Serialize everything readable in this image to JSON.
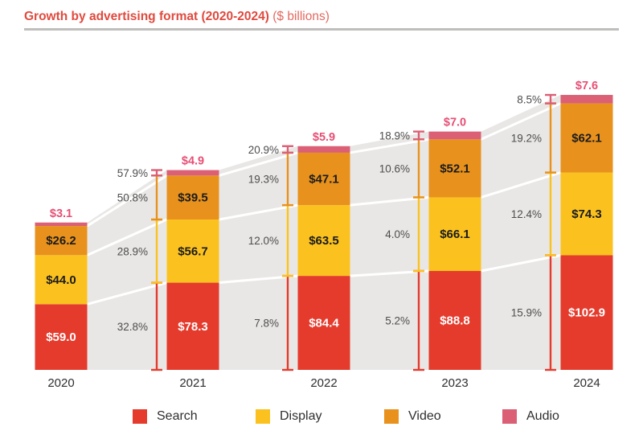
{
  "title": {
    "main": "Growth by advertising format (2020-2024)",
    "suffix": "($ billions)"
  },
  "chart_data": {
    "type": "bar",
    "stacked": true,
    "title": "Growth by advertising format (2020-2024)",
    "unit": "$ billions",
    "legend_position": "bottom",
    "categories": [
      "2020",
      "2021",
      "2022",
      "2023",
      "2024"
    ],
    "series": [
      {
        "name": "Search",
        "color": "#e53b2d",
        "label_color": "#ffffff",
        "values": [
          59.0,
          78.3,
          84.4,
          88.8,
          102.9
        ],
        "value_labels": [
          "$59.0",
          "$78.3",
          "$84.4",
          "$88.8",
          "$102.9"
        ],
        "growth_pct": [
          32.8,
          7.8,
          5.2,
          15.9
        ],
        "growth_labels": [
          "32.8%",
          "7.8%",
          "5.2%",
          "15.9%"
        ]
      },
      {
        "name": "Display",
        "color": "#fbc21f",
        "label_color": "#1b1b1b",
        "values": [
          44.0,
          56.7,
          63.5,
          66.1,
          74.3
        ],
        "value_labels": [
          "$44.0",
          "$56.7",
          "$63.5",
          "$66.1",
          "$74.3"
        ],
        "growth_pct": [
          28.9,
          12.0,
          4.0,
          12.4
        ],
        "growth_labels": [
          "28.9%",
          "12.0%",
          "4.0%",
          "12.4%"
        ]
      },
      {
        "name": "Video",
        "color": "#e8921d",
        "label_color": "#1b1b1b",
        "values": [
          26.2,
          39.5,
          47.1,
          52.1,
          62.1
        ],
        "value_labels": [
          "$26.2",
          "$39.5",
          "$47.1",
          "$52.1",
          "$62.1"
        ],
        "growth_pct": [
          50.8,
          19.3,
          10.6,
          19.2
        ],
        "growth_labels": [
          "50.8%",
          "19.3%",
          "10.6%",
          "19.2%"
        ]
      },
      {
        "name": "Audio",
        "color": "#db5f75",
        "label_color": "#e74f74",
        "values": [
          3.1,
          4.9,
          5.9,
          7.0,
          7.6
        ],
        "value_labels": [
          "$3.1",
          "$4.9",
          "$5.9",
          "$7.0",
          "$7.6"
        ],
        "growth_pct": [
          57.9,
          20.9,
          18.9,
          8.5
        ],
        "growth_labels": [
          "57.9%",
          "20.9%",
          "18.9%",
          "8.5%"
        ]
      }
    ],
    "colors": {
      "flow_gray": "#e8e7e5",
      "boundary_white": "#ffffff",
      "percent_text": "#4d4d4d",
      "axis_text": "#2f2f2f"
    }
  }
}
